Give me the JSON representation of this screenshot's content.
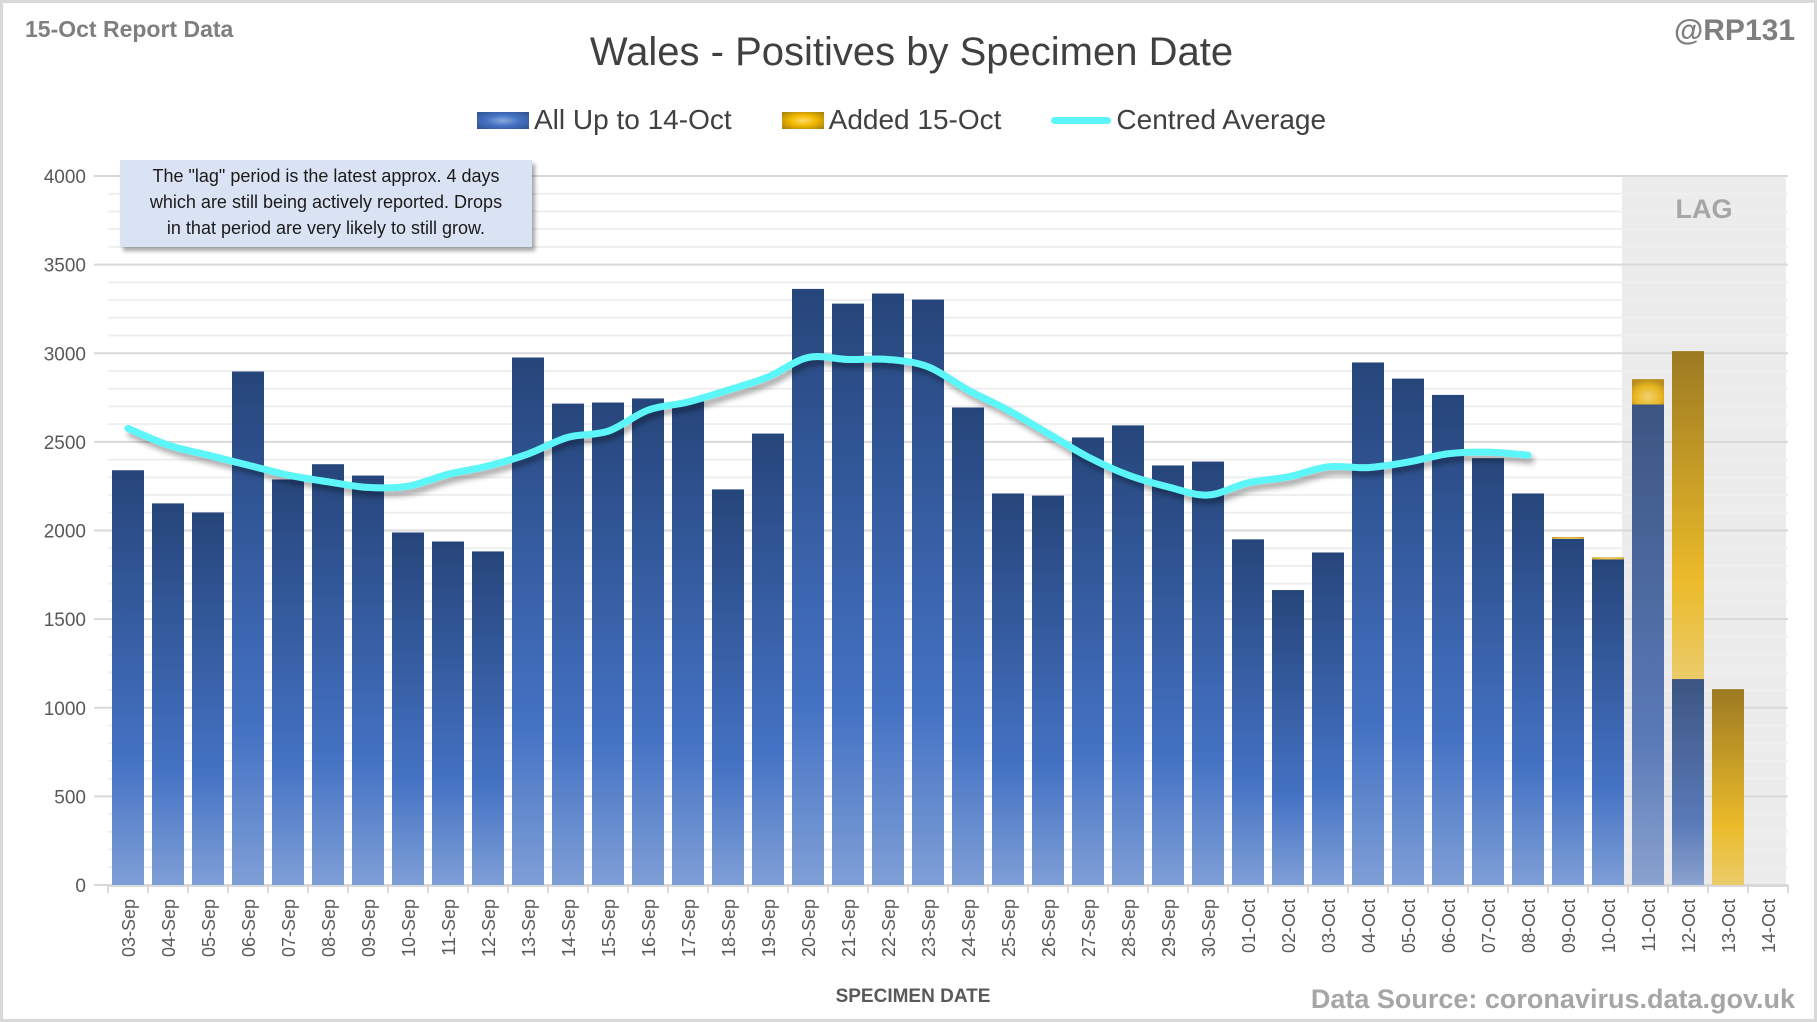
{
  "header": {
    "report_label": "15-Oct Report Data",
    "handle": "@RP131",
    "source": "Data Source: coronavirus.data.gov.uk"
  },
  "annotation": {
    "lines": [
      "The \"lag\" period is the latest approx. 4 days",
      "which are still being actively reported.  Drops",
      "in that period are very likely to still grow."
    ]
  },
  "chart_data": {
    "type": "bar",
    "stacked": true,
    "title": "Wales - Positives by Specimen Date",
    "xlabel": "SPECIMEN DATE",
    "ylabel": "",
    "ylim": [
      0,
      4000
    ],
    "yticks": [
      0,
      500,
      1000,
      1500,
      2000,
      2500,
      3000,
      3500,
      4000
    ],
    "grid": true,
    "legend_position": "top-center",
    "lag_region": {
      "label": "LAG",
      "from": "11-Oct",
      "to": "14-Oct"
    },
    "categories": [
      "03-Sep",
      "04-Sep",
      "05-Sep",
      "06-Sep",
      "07-Sep",
      "08-Sep",
      "09-Sep",
      "10-Sep",
      "11-Sep",
      "12-Sep",
      "13-Sep",
      "14-Sep",
      "15-Sep",
      "16-Sep",
      "17-Sep",
      "18-Sep",
      "19-Sep",
      "20-Sep",
      "21-Sep",
      "22-Sep",
      "23-Sep",
      "24-Sep",
      "25-Sep",
      "26-Sep",
      "27-Sep",
      "28-Sep",
      "29-Sep",
      "30-Sep",
      "01-Oct",
      "02-Oct",
      "03-Oct",
      "04-Oct",
      "05-Oct",
      "06-Oct",
      "07-Oct",
      "08-Oct",
      "09-Oct",
      "10-Oct",
      "11-Oct",
      "12-Oct",
      "13-Oct",
      "14-Oct"
    ],
    "series": [
      {
        "name": "All Up to 14-Oct",
        "type": "bar",
        "color": "#4472c4",
        "values": [
          2340,
          2153,
          2102,
          2897,
          2288,
          2374,
          2310,
          1989,
          1938,
          1882,
          2976,
          2716,
          2722,
          2745,
          2728,
          2232,
          2547,
          3363,
          3280,
          3337,
          3303,
          2694,
          2209,
          2197,
          2525,
          2593,
          2367,
          2389,
          1950,
          1664,
          1876,
          2948,
          2857,
          2765,
          2408,
          2209,
          1953,
          1837,
          2711,
          1162,
          0,
          0
        ]
      },
      {
        "name": "Added 15-Oct",
        "type": "bar",
        "color": "#f0b800",
        "values": [
          0,
          0,
          0,
          0,
          0,
          0,
          0,
          0,
          0,
          0,
          0,
          0,
          0,
          0,
          0,
          0,
          0,
          0,
          0,
          0,
          0,
          0,
          0,
          0,
          0,
          0,
          0,
          0,
          0,
          0,
          0,
          0,
          0,
          0,
          0,
          0,
          10,
          11,
          143,
          1850,
          1105,
          0
        ]
      },
      {
        "name": "Centred Average",
        "type": "line",
        "color": "#5cf5f8",
        "values": [
          2576,
          2482,
          2425,
          2369,
          2313,
          2275,
          2243,
          2250,
          2317,
          2364,
          2432,
          2526,
          2560,
          2679,
          2725,
          2792,
          2866,
          2976,
          2965,
          2965,
          2924,
          2792,
          2679,
          2547,
          2415,
          2313,
          2246,
          2200,
          2269,
          2302,
          2359,
          2355,
          2386,
          2433,
          2442,
          2425,
          null,
          null,
          null,
          null,
          null,
          null
        ]
      }
    ]
  }
}
